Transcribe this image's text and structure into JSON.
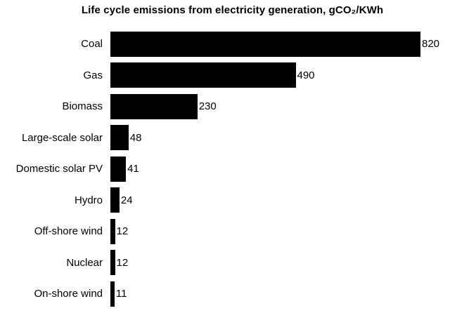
{
  "chart_data": {
    "type": "bar",
    "orientation": "horizontal",
    "title": "Life cycle emissions from electricity generation, gCO₂/KWh",
    "categories": [
      "Coal",
      "Gas",
      "Biomass",
      "Large-scale solar",
      "Domestic solar PV",
      "Hydro",
      "Off-shore wind",
      "Nuclear",
      "On-shore wind"
    ],
    "values": [
      820,
      490,
      230,
      48,
      41,
      24,
      12,
      12,
      11
    ],
    "value_labels": [
      "820",
      "490",
      "230",
      "48",
      "41",
      "24",
      "12",
      "12",
      "11"
    ],
    "xlabel": "",
    "ylabel": "",
    "xlim": [
      0,
      820
    ],
    "grid": false,
    "axes_visible": false,
    "legend": "none",
    "bar_color": "#000000",
    "text_color": "#000000",
    "background_color": "#ffffff"
  }
}
